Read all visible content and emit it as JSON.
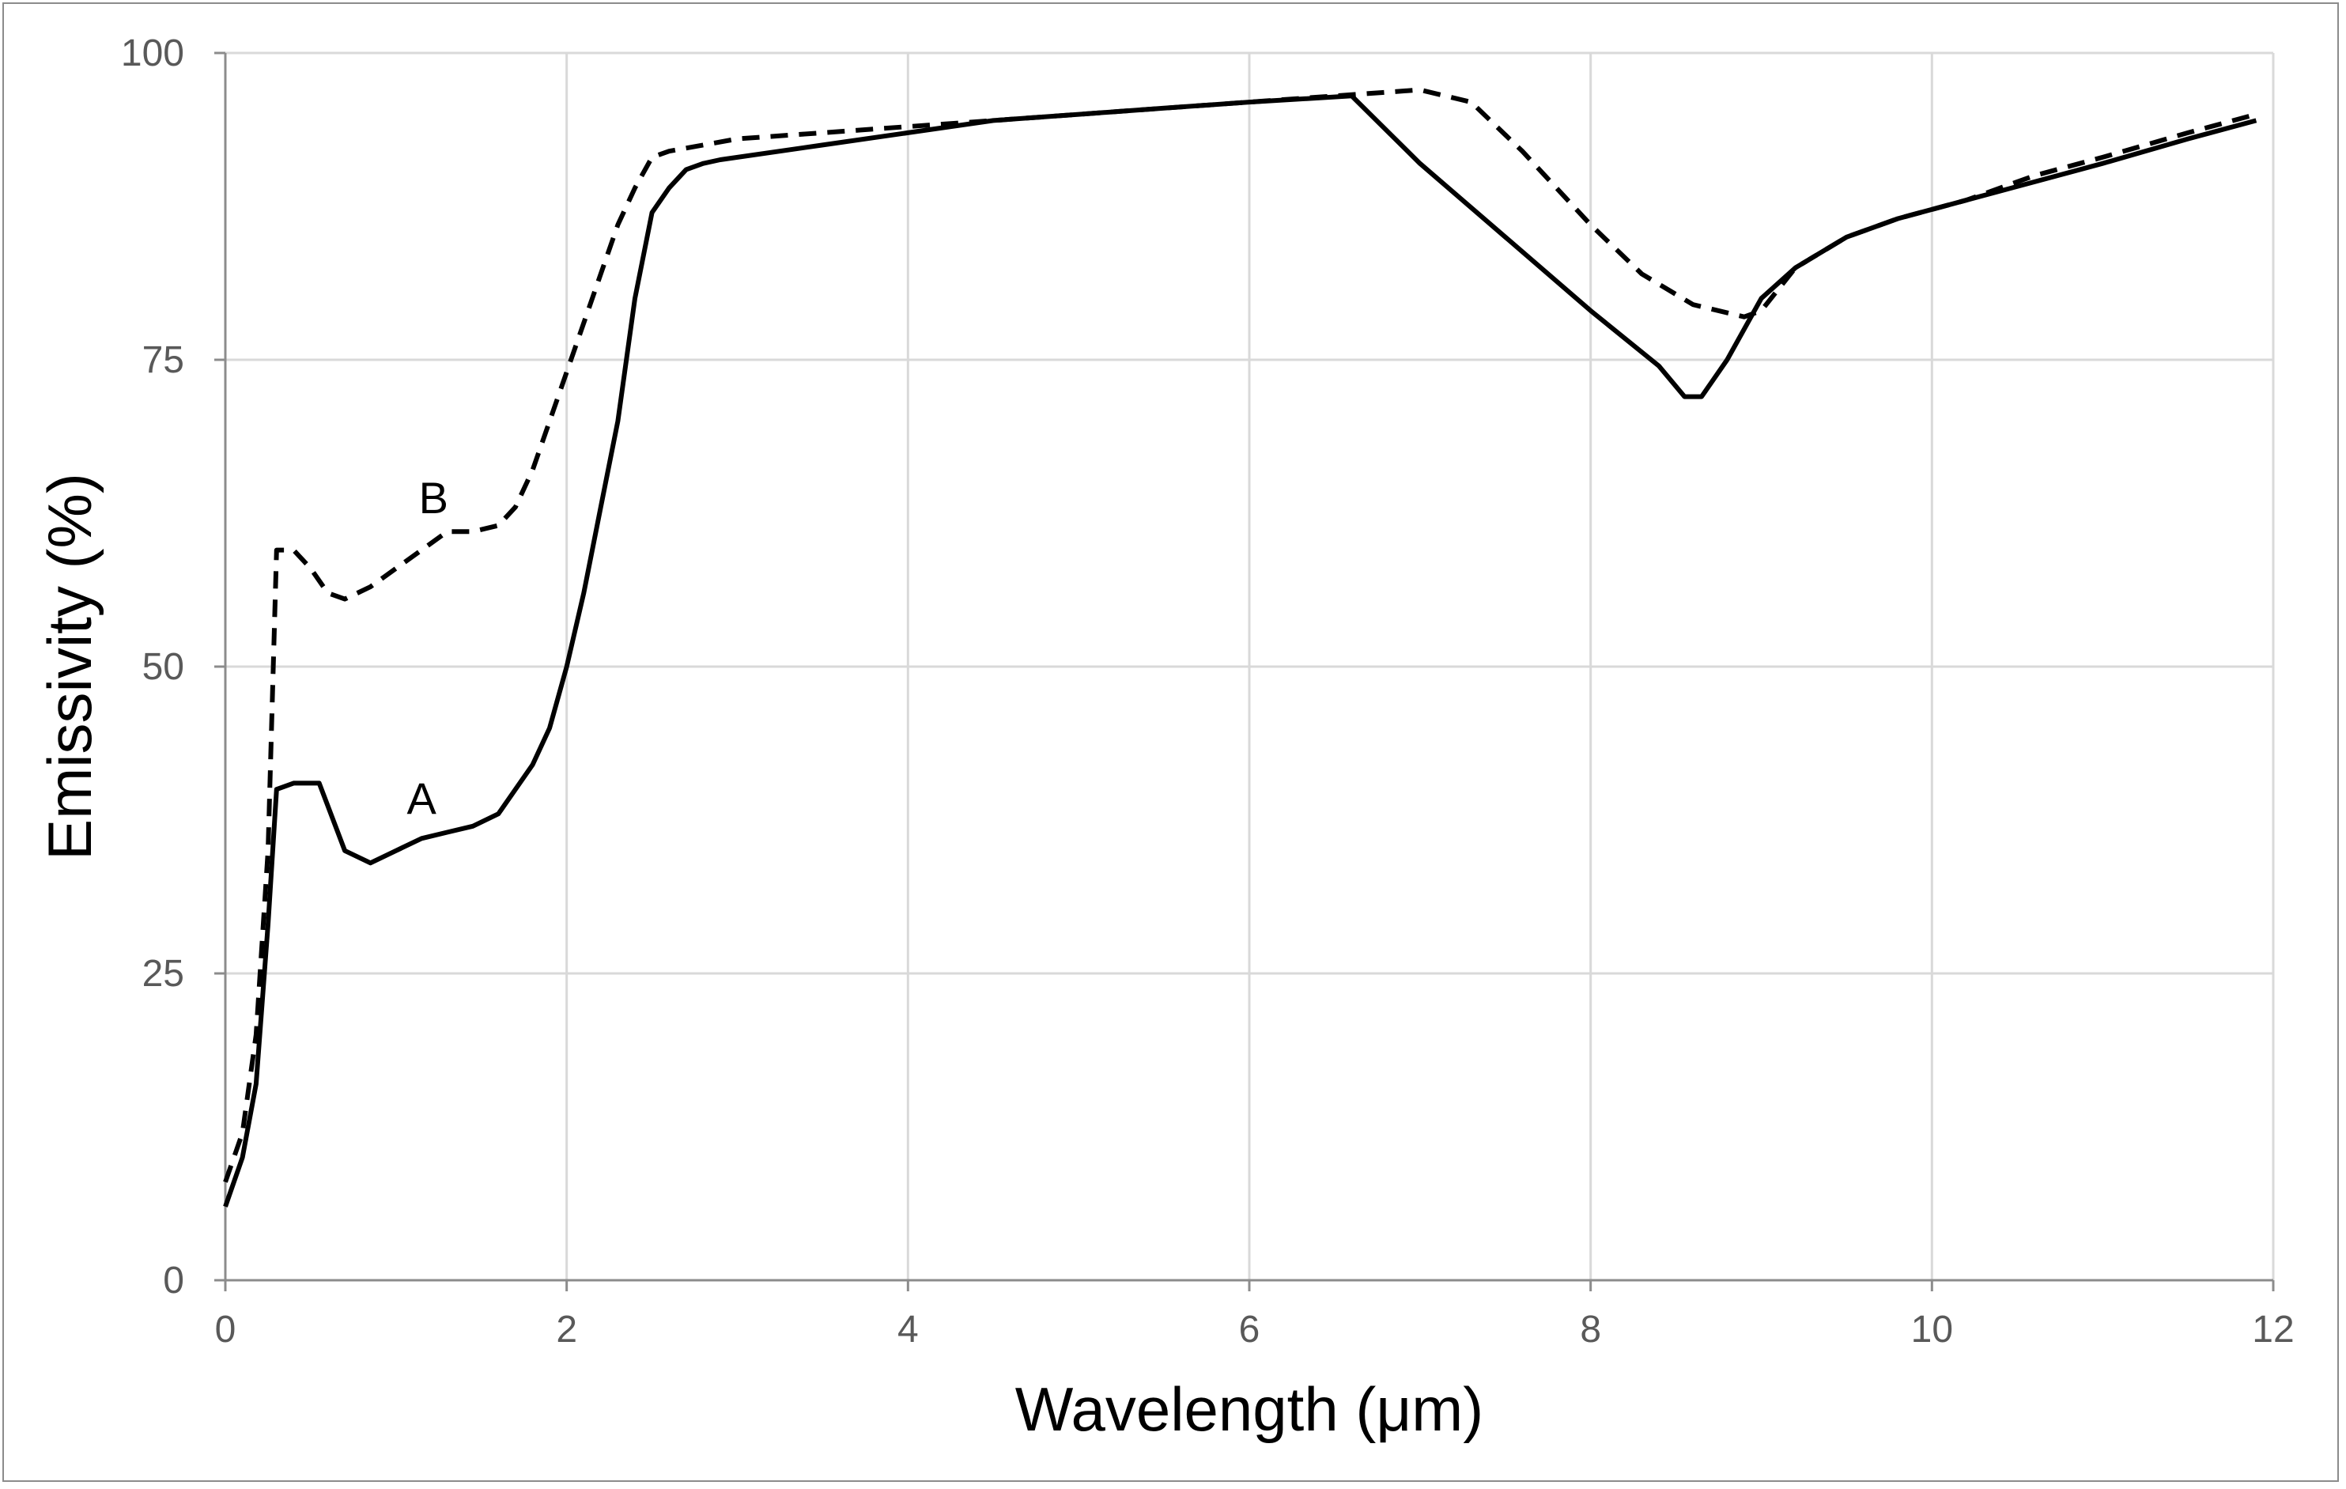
{
  "chart_data": {
    "type": "line",
    "title": "",
    "xlabel": "Wavelength (μm)",
    "ylabel": "Emissivity (%)",
    "xlim": [
      0,
      12
    ],
    "ylim": [
      0,
      100
    ],
    "xticks": [
      0,
      2,
      4,
      6,
      8,
      10,
      12
    ],
    "yticks": [
      0,
      25,
      50,
      75,
      100
    ],
    "grid": true,
    "legend": "none",
    "gridColor": "#d9d9d9",
    "axisColor": "#8c8c8c",
    "seriesColor": "#000000",
    "series": [
      {
        "name": "A",
        "style": "solid",
        "label_at": [
          1.15,
          38
        ],
        "x": [
          0,
          0.1,
          0.18,
          0.25,
          0.3,
          0.4,
          0.55,
          0.7,
          0.85,
          1.0,
          1.15,
          1.3,
          1.45,
          1.6,
          1.7,
          1.8,
          1.9,
          2.0,
          2.1,
          2.2,
          2.3,
          2.4,
          2.5,
          2.6,
          2.7,
          2.8,
          2.9,
          3.5,
          4.0,
          4.5,
          5.0,
          5.5,
          6.0,
          6.6,
          7.0,
          7.5,
          8.0,
          8.4,
          8.55,
          8.65,
          8.8,
          9.0,
          9.2,
          9.5,
          9.8,
          10.2,
          10.6,
          11.0,
          11.5,
          11.9
        ],
        "y": [
          6,
          10,
          16,
          29,
          40,
          40.5,
          40.5,
          35,
          34,
          35,
          36,
          36.5,
          37,
          38,
          40,
          42,
          45,
          50,
          56,
          63,
          70,
          80,
          87,
          89,
          90.5,
          91,
          91.3,
          92.5,
          93.5,
          94.5,
          95,
          95.5,
          96,
          96.5,
          91,
          85,
          79,
          74.5,
          72,
          72,
          75,
          80,
          82.5,
          85,
          86.5,
          88,
          89.5,
          91,
          93,
          94.5
        ]
      },
      {
        "name": "B",
        "style": "dashed",
        "label_at": [
          1.22,
          62.5
        ],
        "x": [
          0,
          0.1,
          0.18,
          0.25,
          0.3,
          0.4,
          0.5,
          0.6,
          0.7,
          0.85,
          1.0,
          1.15,
          1.3,
          1.45,
          1.6,
          1.7,
          1.8,
          1.9,
          2.0,
          2.1,
          2.2,
          2.3,
          2.4,
          2.5,
          2.6,
          2.8,
          3.0,
          3.5,
          4.0,
          4.5,
          5.0,
          5.5,
          6.0,
          6.5,
          7.0,
          7.3,
          7.6,
          8.0,
          8.3,
          8.6,
          8.9,
          9.0,
          9.2,
          9.5,
          9.8,
          10.2,
          10.6,
          11.0,
          11.5,
          11.9
        ],
        "y": [
          8,
          12,
          20,
          35,
          59.5,
          59.5,
          58,
          56,
          55.5,
          56.5,
          58,
          59.5,
          61,
          61,
          61.5,
          63,
          66,
          70,
          74,
          78,
          82,
          86,
          89,
          91.5,
          92,
          92.5,
          93,
          93.5,
          94,
          94.5,
          95,
          95.5,
          96,
          96.5,
          97,
          96,
          92,
          86,
          82,
          79.5,
          78.5,
          79,
          82.5,
          85,
          86.5,
          88,
          90,
          91.5,
          93.5,
          95
        ]
      }
    ]
  }
}
